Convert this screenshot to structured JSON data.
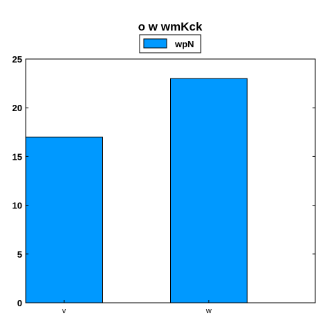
{
  "chart_data": {
    "type": "bar",
    "title": "o w  wmKck",
    "categories": [
      "v",
      "w"
    ],
    "series": [
      {
        "name": "wpN",
        "values": [
          17,
          23
        ],
        "color": "#0099ff"
      }
    ],
    "xlabel": "",
    "ylabel": "",
    "ylim": [
      0,
      25
    ],
    "yticks": [
      0,
      5,
      10,
      15,
      20,
      25
    ],
    "grid": false,
    "legend": "top-center"
  }
}
